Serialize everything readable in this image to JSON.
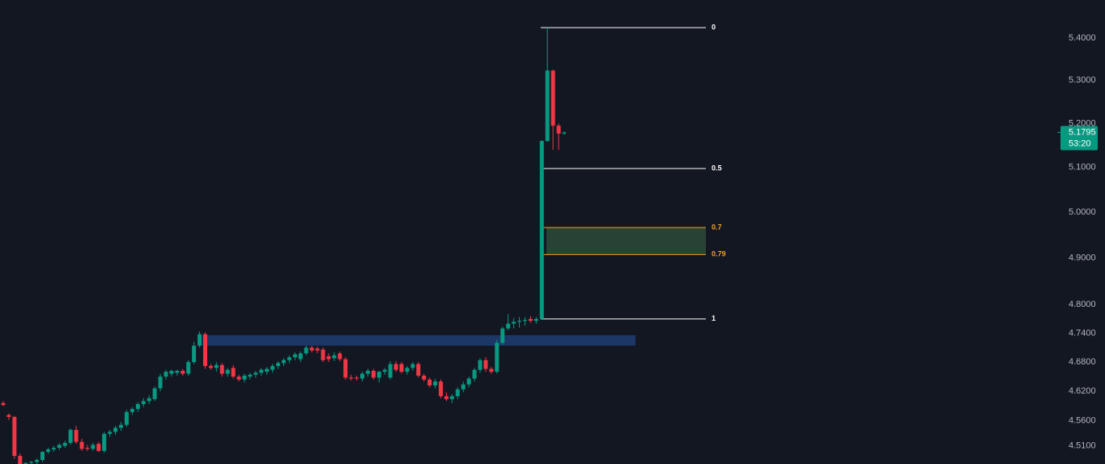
{
  "chart_data": {
    "type": "candlestick",
    "log_scale": true,
    "ylim": [
      4.474,
      5.4915
    ],
    "yticks": [
      {
        "value": 5.4,
        "label": "5.4000"
      },
      {
        "value": 5.3,
        "label": "5.3000"
      },
      {
        "value": 5.2,
        "label": "5.2000"
      },
      {
        "value": 5.1,
        "label": "5.1000"
      },
      {
        "value": 5.0,
        "label": "5.0000"
      },
      {
        "value": 4.9,
        "label": "4.9000"
      },
      {
        "value": 4.8,
        "label": "4.8000"
      },
      {
        "value": 4.74,
        "label": "4.7400"
      },
      {
        "value": 4.68,
        "label": "4.6800"
      },
      {
        "value": 4.62,
        "label": "4.6200"
      },
      {
        "value": 4.56,
        "label": "4.5600"
      },
      {
        "value": 4.51,
        "label": "4.5100"
      }
    ],
    "up_color": "#089981",
    "down_color": "#f23645",
    "candles": [
      [
        4.596,
        4.6,
        4.59,
        4.592
      ],
      [
        4.572,
        4.575,
        4.562,
        4.568
      ],
      [
        4.568,
        4.57,
        4.484,
        4.49
      ],
      [
        4.49,
        4.495,
        4.47,
        4.474
      ],
      [
        4.474,
        4.478,
        4.47,
        4.476
      ],
      [
        4.476,
        4.48,
        4.472,
        4.478
      ],
      [
        4.478,
        4.485,
        4.474,
        4.482
      ],
      [
        4.482,
        4.5,
        4.478,
        4.498
      ],
      [
        4.498,
        4.506,
        4.494,
        4.503
      ],
      [
        4.503,
        4.51,
        4.498,
        4.506
      ],
      [
        4.506,
        4.515,
        4.502,
        4.512
      ],
      [
        4.51,
        4.52,
        4.506,
        4.516
      ],
      [
        4.516,
        4.545,
        4.512,
        4.542
      ],
      [
        4.542,
        4.55,
        4.514,
        4.518
      ],
      [
        4.518,
        4.524,
        4.5,
        4.504
      ],
      [
        4.506,
        4.512,
        4.5,
        4.504
      ],
      [
        4.504,
        4.516,
        4.5,
        4.512
      ],
      [
        4.514,
        4.518,
        4.498,
        4.5
      ],
      [
        4.5,
        4.538,
        4.496,
        4.534
      ],
      [
        4.534,
        4.542,
        4.528,
        4.538
      ],
      [
        4.538,
        4.55,
        4.532,
        4.546
      ],
      [
        4.546,
        4.558,
        4.54,
        4.552
      ],
      [
        4.552,
        4.582,
        4.548,
        4.578
      ],
      [
        4.578,
        4.588,
        4.572,
        4.584
      ],
      [
        4.584,
        4.598,
        4.578,
        4.594
      ],
      [
        4.594,
        4.606,
        4.588,
        4.6
      ],
      [
        4.6,
        4.612,
        4.594,
        4.606
      ],
      [
        4.604,
        4.63,
        4.6,
        4.626
      ],
      [
        4.626,
        4.656,
        4.62,
        4.65
      ],
      [
        4.65,
        4.664,
        4.644,
        4.66
      ],
      [
        4.656,
        4.664,
        4.65,
        4.662
      ],
      [
        4.658,
        4.664,
        4.652,
        4.662
      ],
      [
        4.662,
        4.666,
        4.652,
        4.656
      ],
      [
        4.656,
        4.684,
        4.652,
        4.68
      ],
      [
        4.68,
        4.722,
        4.676,
        4.714
      ],
      [
        4.714,
        4.744,
        4.71,
        4.738
      ],
      [
        4.738,
        4.742,
        4.666,
        4.672
      ],
      [
        4.672,
        4.676,
        4.664,
        4.668
      ],
      [
        4.668,
        4.68,
        4.66,
        4.674
      ],
      [
        4.674,
        4.678,
        4.65,
        4.656
      ],
      [
        4.656,
        4.668,
        4.65,
        4.664
      ],
      [
        4.668,
        4.674,
        4.646,
        4.65
      ],
      [
        4.65,
        4.654,
        4.64,
        4.644
      ],
      [
        4.644,
        4.656,
        4.638,
        4.652
      ],
      [
        4.65,
        4.658,
        4.644,
        4.654
      ],
      [
        4.654,
        4.662,
        4.648,
        4.658
      ],
      [
        4.658,
        4.668,
        4.652,
        4.664
      ],
      [
        4.66,
        4.67,
        4.654,
        4.666
      ],
      [
        4.664,
        4.676,
        4.658,
        4.672
      ],
      [
        4.672,
        4.682,
        4.666,
        4.678
      ],
      [
        4.678,
        4.688,
        4.672,
        4.684
      ],
      [
        4.684,
        4.694,
        4.678,
        4.69
      ],
      [
        4.69,
        4.7,
        4.684,
        4.696
      ],
      [
        4.686,
        4.702,
        4.68,
        4.698
      ],
      [
        4.698,
        4.714,
        4.694,
        4.71
      ],
      [
        4.71,
        4.714,
        4.7,
        4.704
      ],
      [
        4.708,
        4.712,
        4.698,
        4.704
      ],
      [
        4.706,
        4.71,
        4.68,
        4.684
      ],
      [
        4.692,
        4.698,
        4.68,
        4.686
      ],
      [
        4.688,
        4.7,
        4.682,
        4.694
      ],
      [
        4.698,
        4.702,
        4.682,
        4.686
      ],
      [
        4.686,
        4.69,
        4.644,
        4.648
      ],
      [
        4.648,
        4.654,
        4.642,
        4.646
      ],
      [
        4.648,
        4.652,
        4.642,
        4.646
      ],
      [
        4.646,
        4.66,
        4.64,
        4.656
      ],
      [
        4.656,
        4.666,
        4.65,
        4.662
      ],
      [
        4.662,
        4.666,
        4.644,
        4.648
      ],
      [
        4.648,
        4.662,
        4.638,
        4.66
      ],
      [
        4.66,
        4.668,
        4.654,
        4.664
      ],
      [
        4.648,
        4.682,
        4.644,
        4.676
      ],
      [
        4.676,
        4.682,
        4.66,
        4.664
      ],
      [
        4.676,
        4.68,
        4.656,
        4.66
      ],
      [
        4.66,
        4.672,
        4.654,
        4.668
      ],
      [
        4.668,
        4.68,
        4.662,
        4.676
      ],
      [
        4.676,
        4.68,
        4.648,
        4.652
      ],
      [
        4.652,
        4.656,
        4.64,
        4.644
      ],
      [
        4.644,
        4.648,
        4.628,
        4.632
      ],
      [
        4.632,
        4.646,
        4.626,
        4.64
      ],
      [
        4.64,
        4.644,
        4.606,
        4.61
      ],
      [
        4.61,
        4.618,
        4.6,
        4.604
      ],
      [
        4.604,
        4.614,
        4.596,
        4.61
      ],
      [
        4.61,
        4.628,
        4.604,
        4.624
      ],
      [
        4.624,
        4.64,
        4.618,
        4.634
      ],
      [
        4.634,
        4.65,
        4.628,
        4.646
      ],
      [
        4.646,
        4.668,
        4.64,
        4.664
      ],
      [
        4.664,
        4.688,
        4.658,
        4.684
      ],
      [
        4.684,
        4.69,
        4.66,
        4.666
      ],
      [
        4.666,
        4.67,
        4.656,
        4.66
      ],
      [
        4.66,
        4.726,
        4.656,
        4.72
      ],
      [
        4.72,
        4.754,
        4.716,
        4.75
      ],
      [
        4.75,
        4.78,
        4.746,
        4.76
      ],
      [
        4.76,
        4.772,
        4.75,
        4.764
      ],
      [
        4.764,
        4.774,
        4.752,
        4.766
      ],
      [
        4.766,
        4.774,
        4.756,
        4.768
      ],
      [
        4.77,
        4.776,
        4.762,
        4.766
      ],
      [
        4.766,
        4.774,
        4.76,
        4.77
      ],
      [
        4.77,
        5.162,
        4.768,
        5.16
      ],
      [
        5.16,
        5.425,
        5.158,
        5.323
      ],
      [
        5.323,
        5.325,
        5.14,
        5.195
      ],
      [
        5.195,
        5.2,
        5.14,
        5.177
      ],
      [
        5.177,
        5.182,
        5.174,
        5.1795
      ]
    ],
    "last_price": 5.1795,
    "countdown": "53:20",
    "zone": {
      "from": 4.714,
      "to": 4.736,
      "color": "#1e3a6e"
    },
    "fib": {
      "high": 5.425,
      "low": 4.77,
      "levels": [
        0,
        0.5,
        0.7,
        0.79,
        1
      ],
      "line_color": "#ffffff",
      "zone_levels_color": "#f0a020",
      "zone_fill": "#2e4a3a"
    }
  }
}
